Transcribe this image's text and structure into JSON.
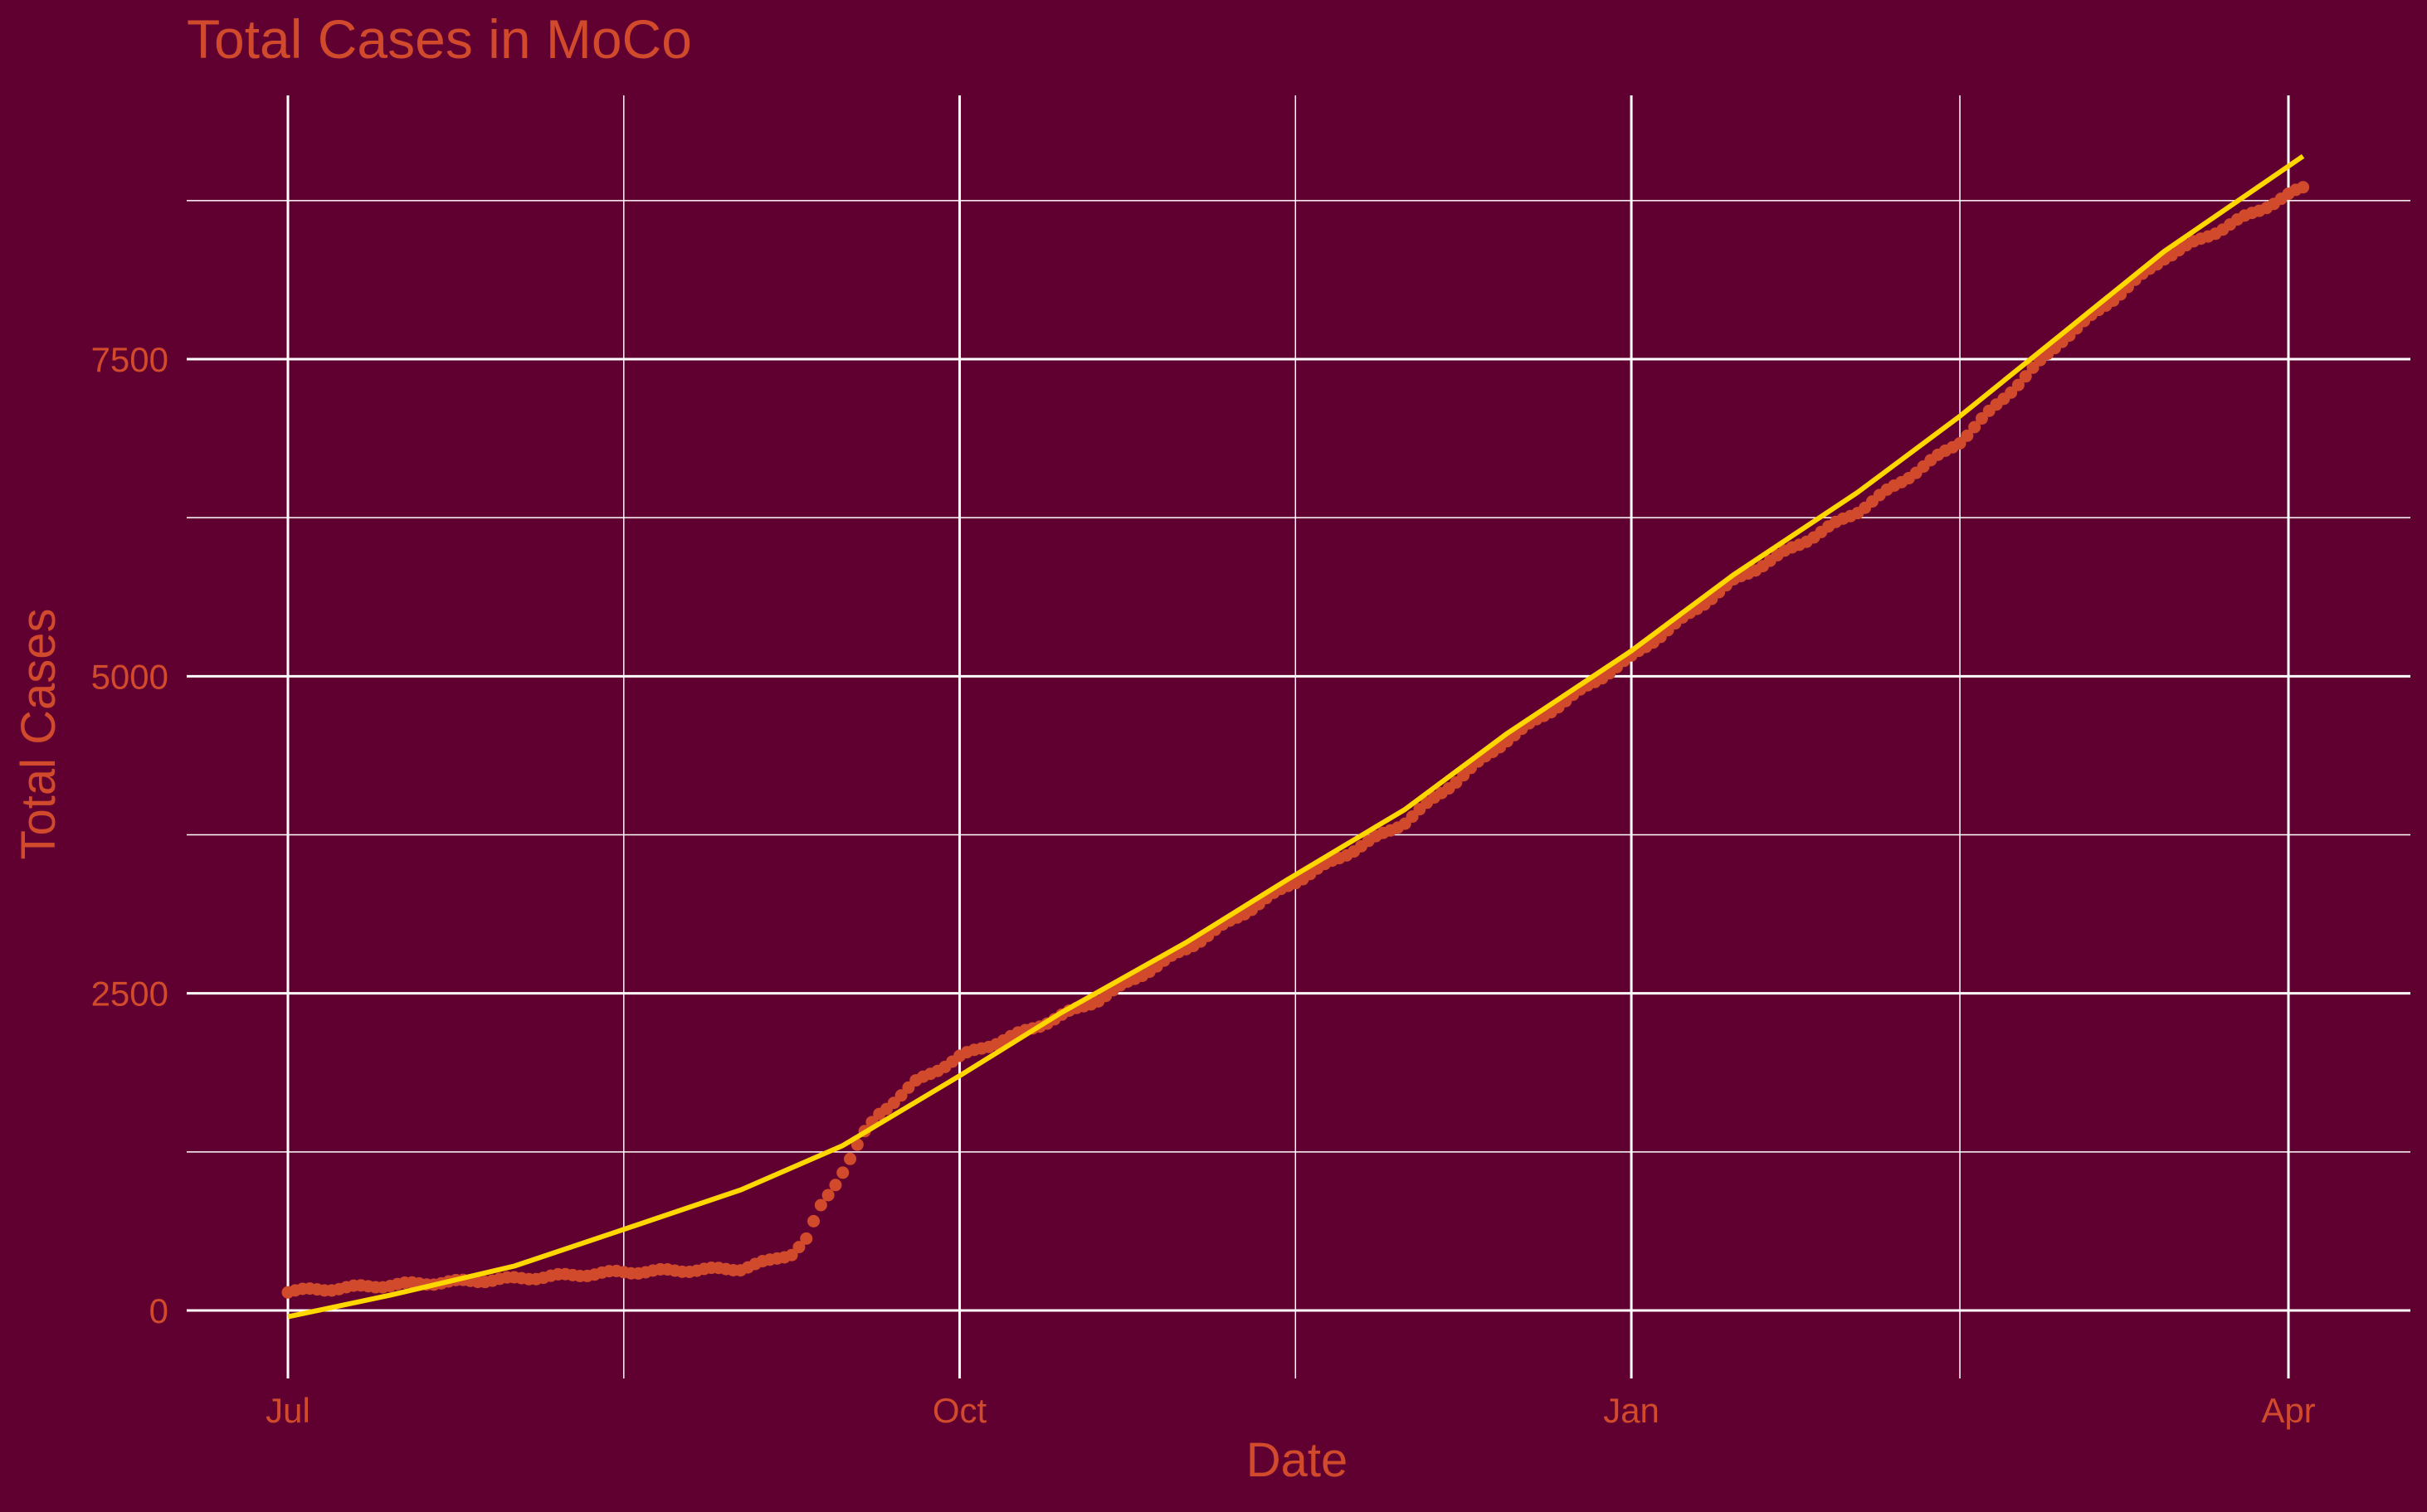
{
  "chart_data": {
    "type": "scatter",
    "title": "Total Cases in MoCo",
    "xlabel": "Date",
    "ylabel": "Total Cases",
    "grid": true,
    "legend": "none",
    "x_domain": [
      "2020-07-01",
      "2021-04-04"
    ],
    "ylim": [
      -500,
      9400
    ],
    "x_ticks": [
      {
        "label": "Jul",
        "date": "2020-07-01"
      },
      {
        "label": "Oct",
        "date": "2020-10-01"
      },
      {
        "label": "Jan",
        "date": "2021-01-01"
      },
      {
        "label": "Apr",
        "date": "2021-04-01"
      }
    ],
    "x_minor_dates": [
      "2020-08-16",
      "2020-11-16",
      "2021-02-15"
    ],
    "y_ticks": [
      0,
      2500,
      5000,
      7500
    ],
    "y_minor": [
      1250,
      3750,
      6250,
      8750
    ],
    "colors": {
      "background": "#600030",
      "grid": "#ffffff",
      "text": "#d14a2c",
      "points": "#d14a2c",
      "trend": "#ffd700"
    },
    "series": [
      {
        "kind": "points",
        "x": [
          "2020-07-01",
          "2020-07-15",
          "2020-08-01",
          "2020-08-15",
          "2020-09-01",
          "2020-09-05",
          "2020-09-08",
          "2020-09-10",
          "2020-09-12",
          "2020-09-14",
          "2020-09-16",
          "2020-09-18",
          "2020-09-20",
          "2020-09-25",
          "2020-10-01",
          "2020-10-10",
          "2020-10-20",
          "2020-11-01",
          "2020-11-15",
          "2020-12-01",
          "2020-12-15",
          "2021-01-01",
          "2021-01-15",
          "2021-02-01",
          "2021-02-15",
          "2021-03-01",
          "2021-03-15",
          "2021-04-03"
        ],
        "y": [
          150,
          200,
          250,
          300,
          330,
          390,
          450,
          560,
          820,
          1000,
          1200,
          1400,
          1550,
          1800,
          2000,
          2200,
          2450,
          2850,
          3350,
          3850,
          4500,
          5150,
          5750,
          6300,
          6850,
          7650,
          8300,
          8850
        ]
      },
      {
        "kind": "line",
        "x": [
          "2020-07-01",
          "2020-07-15",
          "2020-08-01",
          "2020-08-15",
          "2020-09-01",
          "2020-09-15",
          "2020-10-01",
          "2020-10-15",
          "2020-11-01",
          "2020-11-15",
          "2020-12-01",
          "2020-12-15",
          "2021-01-01",
          "2021-01-15",
          "2021-02-01",
          "2021-02-15",
          "2021-03-01",
          "2021-03-15",
          "2021-04-03"
        ],
        "y": [
          -50,
          120,
          350,
          620,
          950,
          1300,
          1850,
          2350,
          2900,
          3400,
          3950,
          4550,
          5200,
          5800,
          6450,
          7050,
          7700,
          8350,
          9100
        ]
      }
    ]
  }
}
